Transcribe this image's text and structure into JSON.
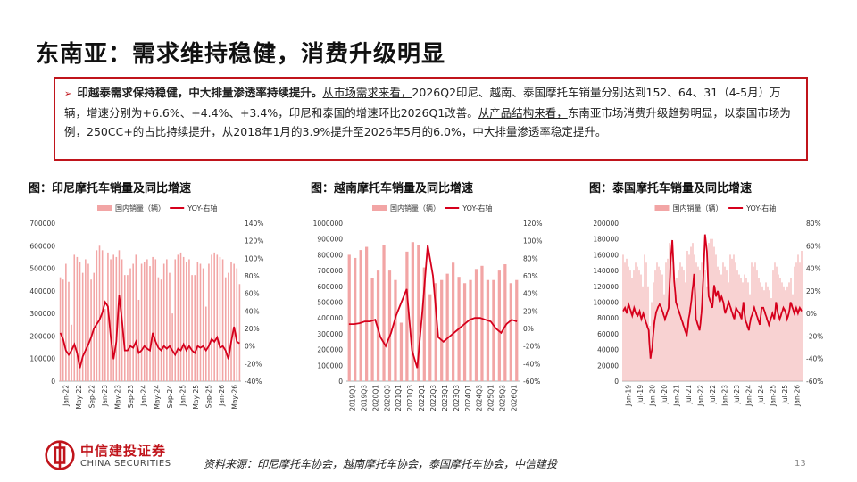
{
  "page": {
    "title": "东南亚：需求维持稳健，消费升级明显",
    "page_number": "13",
    "source": "资料来源：印尼摩托车协会，越南摩托车协会，泰国摩托车协会，中信建投"
  },
  "summary": {
    "bold_lead": "印越泰需求保持稳健，中大排量渗透率持续提升。",
    "ul1": "从市场需求来看，",
    "text1": "2026Q2印尼、越南、泰国摩托车销量分别达到152、64、31（4-5月）万辆，增速分别为+6.6%、+4.4%、+3.4%，印尼和泰国的增速环比2026Q1改善。",
    "ul2": "从产品结构来看，",
    "text2": "东南亚市场消费升级趋势明显，以泰国市场为例，250CC+的占比持续提升，从2018年1月的3.9%提升至2026年5月的6.0%，中大排量渗透率稳定提升。"
  },
  "logo": {
    "cn": "中信建投证券",
    "en": "CHINA SECURITIES"
  },
  "colors": {
    "accent": "#c0141b",
    "bar": "#f2a5a5",
    "line": "#d6001c"
  },
  "chart_data": [
    {
      "type": "bar+line",
      "title": "图：印尼摩托车销量及同比增速",
      "legend": [
        "国内销量（辆）",
        "YOY-右轴"
      ],
      "left_axis": {
        "ticks": [
          "700000",
          "600000",
          "500000",
          "400000",
          "300000",
          "200000",
          "100000",
          "0"
        ],
        "min": 0,
        "max": 700000
      },
      "right_axis": {
        "ticks": [
          "140%",
          "120%",
          "100%",
          "80%",
          "60%",
          "40%",
          "20%",
          "0%",
          "-20%",
          "-40%"
        ],
        "min": -40,
        "max": 140
      },
      "x_ticks": [
        "Jan-22",
        "May-22",
        "Sep-22",
        "Jan-23",
        "May-23",
        "Sep-23",
        "Jan-24",
        "May-24",
        "Sep-24",
        "Jan-25",
        "May-25",
        "Sep-25",
        "Jan-26",
        "May-26"
      ],
      "bars": [
        460000,
        450000,
        520000,
        440000,
        250000,
        560000,
        550000,
        530000,
        480000,
        540000,
        520000,
        450000,
        480000,
        580000,
        600000,
        580000,
        320000,
        570000,
        540000,
        560000,
        550000,
        580000,
        540000,
        470000,
        470000,
        500000,
        520000,
        560000,
        360000,
        520000,
        530000,
        540000,
        510000,
        550000,
        540000,
        460000,
        450000,
        520000,
        540000,
        480000,
        300000,
        540000,
        560000,
        570000,
        550000,
        530000,
        540000,
        470000,
        470000,
        530000,
        520000,
        500000,
        330000,
        520000,
        560000,
        570000,
        560000,
        550000,
        540000,
        460000,
        480000,
        530000,
        520000,
        500000,
        430000
      ],
      "yoy": [
        15,
        8,
        -5,
        -10,
        -5,
        2,
        -8,
        -25,
        -12,
        -5,
        2,
        10,
        20,
        25,
        30,
        38,
        50,
        45,
        10,
        -15,
        5,
        58,
        30,
        -5,
        -5,
        0,
        -2,
        5,
        -8,
        -5,
        0,
        -3,
        -5,
        15,
        5,
        -2,
        -5,
        0,
        -3,
        0,
        -5,
        -10,
        -3,
        -5,
        2,
        -5,
        0,
        -5,
        -8,
        0,
        -2,
        0,
        -5,
        0,
        8,
        5,
        10,
        -2,
        0,
        -5,
        -15,
        5,
        22,
        5,
        3
      ]
    },
    {
      "type": "bar+line",
      "title": "图：越南摩托车销量及同比增速",
      "legend": [
        "国内销量（辆）",
        "YOY-右轴"
      ],
      "left_axis": {
        "ticks": [
          "1000000",
          "900000",
          "800000",
          "700000",
          "600000",
          "500000",
          "400000",
          "300000",
          "200000",
          "100000",
          "0"
        ],
        "min": 0,
        "max": 1000000
      },
      "right_axis": {
        "ticks": [
          "120%",
          "100%",
          "80%",
          "60%",
          "40%",
          "20%",
          "0%",
          "-20%",
          "-40%",
          "-60%"
        ],
        "min": -60,
        "max": 120
      },
      "x_ticks": [
        "2019Q1",
        "2019Q3",
        "2020Q1",
        "2020Q3",
        "2021Q1",
        "2021Q3",
        "2022Q1",
        "2022Q3",
        "2023Q1",
        "2023Q3",
        "2024Q1",
        "2024Q3",
        "2025Q1",
        "2025Q3",
        "2026Q1"
      ],
      "bars": [
        800000,
        780000,
        830000,
        850000,
        650000,
        700000,
        860000,
        700000,
        640000,
        370000,
        820000,
        880000,
        860000,
        720000,
        550000,
        620000,
        640000,
        680000,
        750000,
        660000,
        620000,
        640000,
        710000,
        730000,
        640000,
        640000,
        700000,
        740000,
        620000,
        640000
      ],
      "yoy": [
        5,
        5,
        6,
        8,
        8,
        10,
        -10,
        -20,
        -5,
        15,
        30,
        45,
        -25,
        -45,
        20,
        95,
        60,
        -10,
        -15,
        -10,
        -5,
        0,
        5,
        10,
        12,
        12,
        10,
        8,
        0,
        -5,
        5,
        10,
        8
      ]
    },
    {
      "type": "bar+line",
      "title": "图：泰国摩托车销量及同比增速",
      "legend": [
        "国内销量（辆）",
        "YOY-右轴"
      ],
      "left_axis": {
        "ticks": [
          "200000",
          "180000",
          "160000",
          "140000",
          "120000",
          "100000",
          "80000",
          "60000",
          "40000",
          "20000",
          "0"
        ],
        "min": 0,
        "max": 200000
      },
      "right_axis": {
        "ticks": [
          "80%",
          "60%",
          "40%",
          "20%",
          "0%",
          "-20%",
          "-40%",
          "-60%"
        ],
        "min": -60,
        "max": 80
      },
      "x_ticks": [
        "Jan-19",
        "Jul-19",
        "Jan-20",
        "Jul-20",
        "Jan-21",
        "Jul-21",
        "Jan-22",
        "Jul-22",
        "Jan-23",
        "Jul-23",
        "Jan-24",
        "Jul-24",
        "Jan-25",
        "Jul-25",
        "Jan-26"
      ],
      "bars": [
        160000,
        150000,
        155000,
        145000,
        140000,
        130000,
        140000,
        150000,
        145000,
        140000,
        135000,
        120000,
        160000,
        150000,
        120000,
        70000,
        100000,
        125000,
        140000,
        150000,
        145000,
        140000,
        135000,
        110000,
        150000,
        155000,
        175000,
        160000,
        145000,
        120000,
        130000,
        140000,
        150000,
        145000,
        140000,
        125000,
        165000,
        160000,
        170000,
        175000,
        160000,
        150000,
        145000,
        140000,
        150000,
        145000,
        140000,
        120000,
        175000,
        180000,
        180000,
        170000,
        160000,
        145000,
        140000,
        135000,
        150000,
        145000,
        140000,
        125000,
        160000,
        155000,
        160000,
        150000,
        140000,
        135000,
        130000,
        125000,
        135000,
        130000,
        125000,
        110000,
        150000,
        145000,
        150000,
        140000,
        130000,
        125000,
        120000,
        115000,
        125000,
        120000,
        115000,
        105000,
        140000,
        150000,
        145000,
        135000,
        130000,
        125000,
        120000,
        115000,
        120000,
        125000,
        130000,
        110000,
        145000,
        150000,
        160000,
        150000,
        165000
      ],
      "yoy": [
        2,
        5,
        0,
        8,
        3,
        -2,
        5,
        0,
        -2,
        2,
        -5,
        0,
        -5,
        -10,
        -15,
        -40,
        -30,
        -10,
        0,
        5,
        8,
        5,
        0,
        -5,
        0,
        5,
        45,
        65,
        30,
        10,
        5,
        0,
        -5,
        -10,
        -15,
        -20,
        -5,
        5,
        20,
        35,
        -5,
        -10,
        -15,
        0,
        30,
        70,
        55,
        15,
        10,
        5,
        25,
        15,
        20,
        10,
        15,
        10,
        0,
        5,
        10,
        5,
        0,
        -5,
        5,
        2,
        0,
        -5,
        10,
        -5,
        -10,
        -15,
        -5,
        0,
        5,
        0,
        -5,
        -10,
        5,
        5,
        0,
        -5,
        -10,
        -5,
        0,
        -5,
        10,
        0,
        -5,
        0,
        5,
        2,
        -5,
        0,
        10,
        5,
        0,
        5,
        0,
        5,
        2
      ]
    }
  ]
}
